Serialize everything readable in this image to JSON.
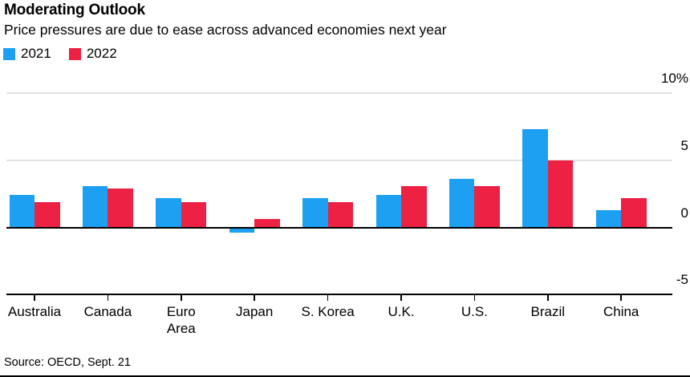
{
  "header": {
    "title": "Moderating Outlook",
    "subtitle": "Price pressures are due to ease across advanced economies next year"
  },
  "source": "Source: OECD, Sept. 21",
  "colors": {
    "series_2021": "#1da0f2",
    "series_2022": "#ec2143",
    "gridline": "#e2e2e2",
    "axis": "#000000"
  },
  "chart_data": {
    "type": "bar",
    "title": "Moderating Outlook",
    "subtitle": "Price pressures are due to ease across advanced economies next year",
    "unit": "%",
    "categories": [
      "Australia",
      "Canada",
      "Euro Area",
      "Japan",
      "S. Korea",
      "U.K.",
      "U.S.",
      "Brazil",
      "China"
    ],
    "category_display_labels": [
      "Australia",
      "Canada",
      "Euro\nArea",
      "Japan",
      "S. Korea",
      "U.K.",
      "U.S.",
      "Brazil",
      "China"
    ],
    "series": [
      {
        "name": "2021",
        "color": "#1da0f2",
        "values": [
          2.4,
          3.1,
          2.2,
          -0.4,
          2.2,
          2.4,
          3.6,
          7.3,
          1.3
        ]
      },
      {
        "name": "2022",
        "color": "#ec2143",
        "values": [
          1.9,
          2.9,
          1.9,
          0.6,
          1.9,
          3.1,
          3.1,
          5.0,
          2.2
        ]
      }
    ],
    "ylim": [
      -5,
      10
    ],
    "y_ticks": [
      {
        "label": "10%",
        "value": 10
      },
      {
        "label": "5",
        "value": 5
      },
      {
        "label": "0",
        "value": 0
      },
      {
        "label": "-5",
        "value": -5
      }
    ],
    "gridline_values": [
      10,
      5
    ],
    "zero_line": true,
    "grid": "horizontal",
    "legend_position": "top-left",
    "source": "Source: OECD, Sept. 21"
  }
}
